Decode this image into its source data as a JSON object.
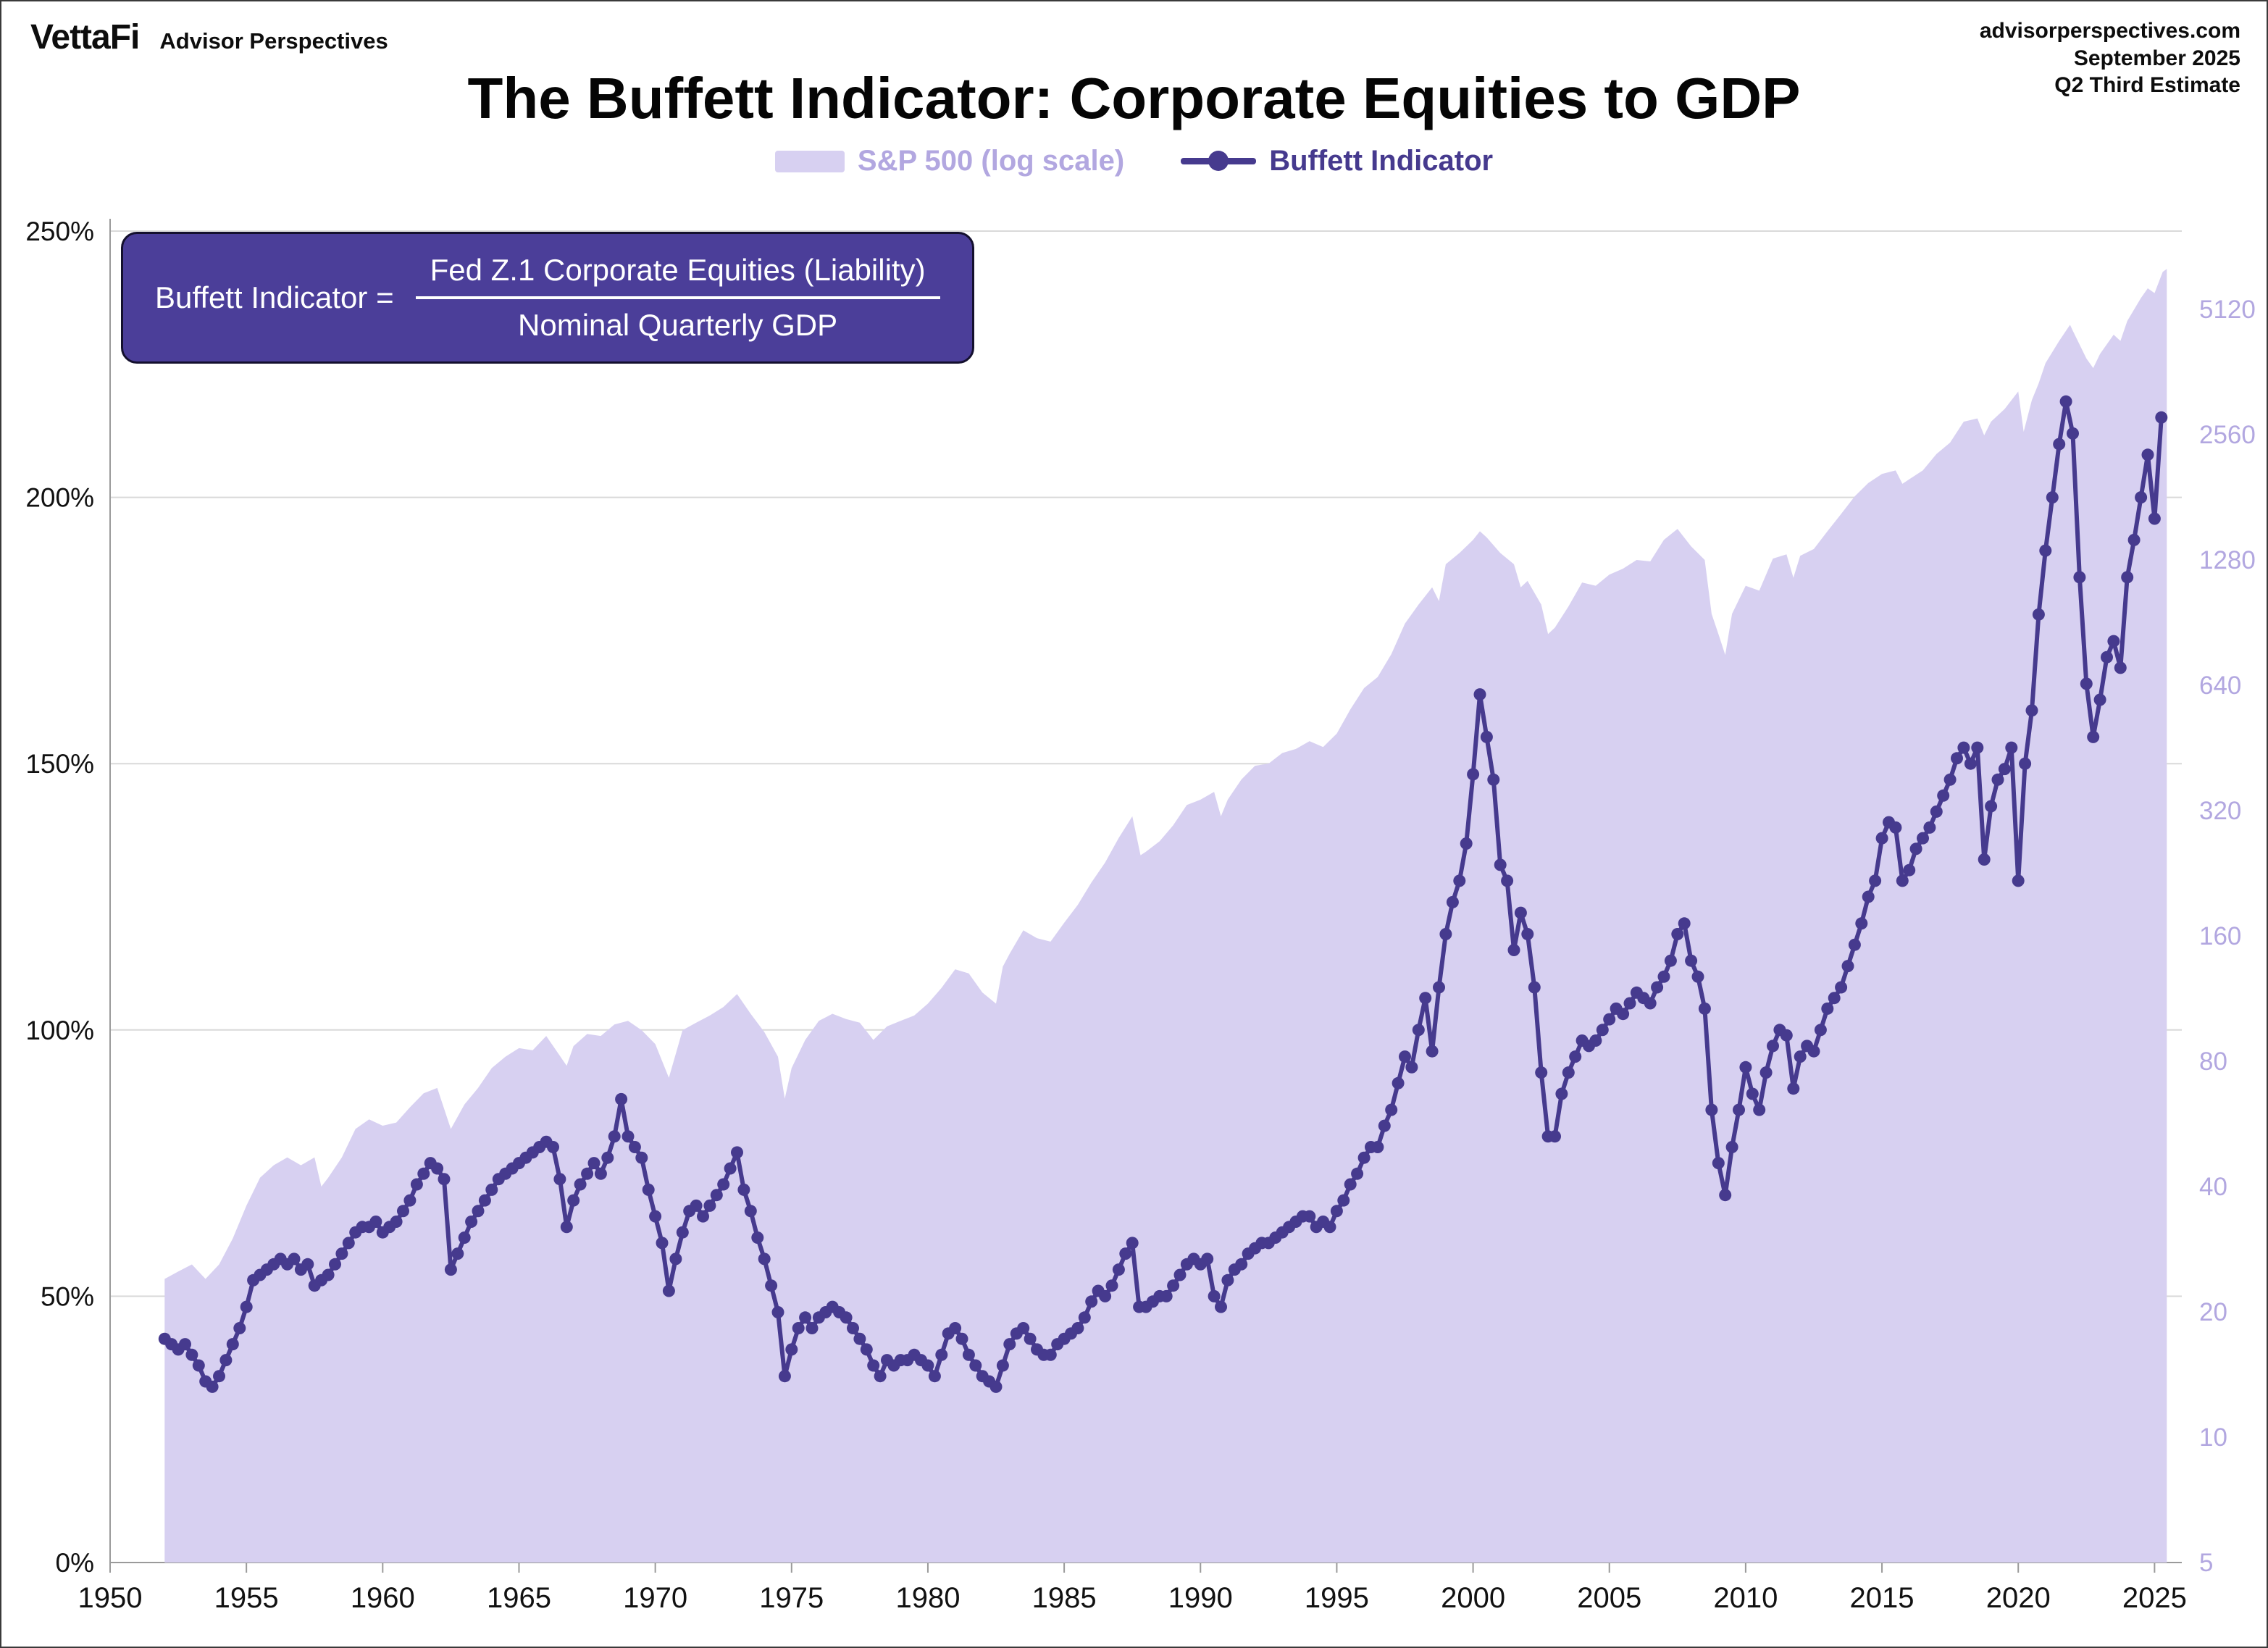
{
  "header": {
    "brand": "VettaFi",
    "brand_sub": "Advisor Perspectives",
    "site": "advisorperspectives.com",
    "date": "September 2025",
    "estimate": "Q2 Third Estimate"
  },
  "title": "The Buffett Indicator: Corporate Equities to GDP",
  "legend": {
    "sp500": "S&P 500 (log scale)",
    "buffett": "Buffett Indicator"
  },
  "formula": {
    "lhs": "Buffett Indicator =",
    "numerator": "Fed Z.1 Corporate Equities (Liability)",
    "denominator": "Nominal Quarterly GDP"
  },
  "chart_data": {
    "type": "line",
    "title": "The Buffett Indicator: Corporate Equities to GDP",
    "legend_entries": [
      "S&P 500 (log scale)",
      "Buffett Indicator"
    ],
    "x_axis": {
      "min": 1950,
      "max": 2026,
      "ticks": [
        1950,
        1955,
        1960,
        1965,
        1970,
        1975,
        1980,
        1985,
        1990,
        1995,
        2000,
        2005,
        2010,
        2015,
        2020,
        2025
      ]
    },
    "left_axis": {
      "max": 250,
      "unit": "%",
      "ticks": [
        {
          "value": 0,
          "label": "0%"
        },
        {
          "value": 50,
          "label": "50%"
        },
        {
          "value": 100,
          "label": "100%"
        },
        {
          "value": 150,
          "label": "150%"
        },
        {
          "value": 200,
          "label": "200%"
        },
        {
          "value": 250,
          "label": "250%"
        }
      ]
    },
    "right_axis": {
      "scale": "log2",
      "base": 5,
      "ticks": [
        5,
        10,
        20,
        40,
        80,
        160,
        320,
        640,
        1280,
        2560,
        5120
      ]
    },
    "colors": {
      "line": "#463a8e",
      "area": "#d7d0f1",
      "sp500_label": "#b2a7e0",
      "grid": "#d9d9d9",
      "axis": "#9a9a9a",
      "tick_text": "#111111",
      "formula_bg": "#4b3e99"
    },
    "series": {
      "sp500": {
        "name": "S&P 500 (log scale)",
        "render": "area",
        "points": [
          [
            1952.0,
            24
          ],
          [
            1952.5,
            25
          ],
          [
            1953.0,
            26
          ],
          [
            1953.5,
            24
          ],
          [
            1954.0,
            26
          ],
          [
            1954.5,
            30
          ],
          [
            1955.0,
            36
          ],
          [
            1955.5,
            42
          ],
          [
            1956.0,
            45
          ],
          [
            1956.5,
            47
          ],
          [
            1957.0,
            45
          ],
          [
            1957.5,
            47
          ],
          [
            1957.75,
            40
          ],
          [
            1958.0,
            42
          ],
          [
            1958.5,
            47
          ],
          [
            1959.0,
            55
          ],
          [
            1959.5,
            58
          ],
          [
            1960.0,
            56
          ],
          [
            1960.5,
            57
          ],
          [
            1961.0,
            62
          ],
          [
            1961.5,
            67
          ],
          [
            1962.0,
            69
          ],
          [
            1962.5,
            55
          ],
          [
            1963.0,
            63
          ],
          [
            1963.5,
            69
          ],
          [
            1964.0,
            77
          ],
          [
            1964.5,
            82
          ],
          [
            1965.0,
            86
          ],
          [
            1965.5,
            85
          ],
          [
            1966.0,
            92
          ],
          [
            1966.75,
            78
          ],
          [
            1967.0,
            87
          ],
          [
            1967.5,
            93
          ],
          [
            1968.0,
            92
          ],
          [
            1968.5,
            98
          ],
          [
            1969.0,
            100
          ],
          [
            1969.5,
            95
          ],
          [
            1970.0,
            88
          ],
          [
            1970.5,
            73
          ],
          [
            1971.0,
            95
          ],
          [
            1971.5,
            99
          ],
          [
            1972.0,
            103
          ],
          [
            1972.5,
            108
          ],
          [
            1973.0,
            116
          ],
          [
            1973.5,
            104
          ],
          [
            1974.0,
            94
          ],
          [
            1974.5,
            82
          ],
          [
            1974.75,
            65
          ],
          [
            1975.0,
            77
          ],
          [
            1975.5,
            90
          ],
          [
            1976.0,
            100
          ],
          [
            1976.5,
            104
          ],
          [
            1977.0,
            101
          ],
          [
            1977.5,
            99
          ],
          [
            1978.0,
            90
          ],
          [
            1978.5,
            97
          ],
          [
            1979.0,
            100
          ],
          [
            1979.5,
            103
          ],
          [
            1980.0,
            110
          ],
          [
            1980.5,
            120
          ],
          [
            1981.0,
            133
          ],
          [
            1981.5,
            130
          ],
          [
            1982.0,
            117
          ],
          [
            1982.5,
            110
          ],
          [
            1982.75,
            135
          ],
          [
            1983.0,
            145
          ],
          [
            1983.5,
            165
          ],
          [
            1984.0,
            158
          ],
          [
            1984.5,
            155
          ],
          [
            1985.0,
            172
          ],
          [
            1985.5,
            190
          ],
          [
            1986.0,
            215
          ],
          [
            1986.5,
            240
          ],
          [
            1987.0,
            275
          ],
          [
            1987.5,
            310
          ],
          [
            1987.8,
            250
          ],
          [
            1988.0,
            255
          ],
          [
            1988.5,
            270
          ],
          [
            1989.0,
            295
          ],
          [
            1989.5,
            330
          ],
          [
            1990.0,
            340
          ],
          [
            1990.5,
            355
          ],
          [
            1990.75,
            310
          ],
          [
            1991.0,
            340
          ],
          [
            1991.5,
            380
          ],
          [
            1992.0,
            410
          ],
          [
            1992.5,
            415
          ],
          [
            1993.0,
            440
          ],
          [
            1993.5,
            450
          ],
          [
            1994.0,
            470
          ],
          [
            1994.5,
            455
          ],
          [
            1995.0,
            490
          ],
          [
            1995.5,
            560
          ],
          [
            1996.0,
            630
          ],
          [
            1996.5,
            670
          ],
          [
            1997.0,
            760
          ],
          [
            1997.5,
            900
          ],
          [
            1998.0,
            1000
          ],
          [
            1998.5,
            1100
          ],
          [
            1998.75,
            1020
          ],
          [
            1999.0,
            1250
          ],
          [
            1999.5,
            1330
          ],
          [
            2000.0,
            1430
          ],
          [
            2000.25,
            1500
          ],
          [
            2000.5,
            1450
          ],
          [
            2001.0,
            1330
          ],
          [
            2001.5,
            1250
          ],
          [
            2001.75,
            1100
          ],
          [
            2002.0,
            1140
          ],
          [
            2002.5,
            1000
          ],
          [
            2002.75,
            850
          ],
          [
            2003.0,
            880
          ],
          [
            2003.5,
            990
          ],
          [
            2004.0,
            1130
          ],
          [
            2004.5,
            1110
          ],
          [
            2005.0,
            1180
          ],
          [
            2005.5,
            1220
          ],
          [
            2006.0,
            1280
          ],
          [
            2006.5,
            1270
          ],
          [
            2007.0,
            1430
          ],
          [
            2007.5,
            1520
          ],
          [
            2008.0,
            1380
          ],
          [
            2008.5,
            1280
          ],
          [
            2008.75,
            950
          ],
          [
            2009.0,
            850
          ],
          [
            2009.25,
            757
          ],
          [
            2009.5,
            950
          ],
          [
            2010.0,
            1110
          ],
          [
            2010.5,
            1080
          ],
          [
            2011.0,
            1290
          ],
          [
            2011.5,
            1320
          ],
          [
            2011.75,
            1160
          ],
          [
            2012.0,
            1310
          ],
          [
            2012.5,
            1360
          ],
          [
            2013.0,
            1500
          ],
          [
            2013.5,
            1650
          ],
          [
            2014.0,
            1820
          ],
          [
            2014.5,
            1960
          ],
          [
            2015.0,
            2060
          ],
          [
            2015.5,
            2100
          ],
          [
            2015.75,
            1950
          ],
          [
            2016.0,
            2000
          ],
          [
            2016.5,
            2100
          ],
          [
            2017.0,
            2300
          ],
          [
            2017.5,
            2450
          ],
          [
            2018.0,
            2750
          ],
          [
            2018.5,
            2800
          ],
          [
            2018.75,
            2550
          ],
          [
            2019.0,
            2750
          ],
          [
            2019.5,
            2950
          ],
          [
            2020.0,
            3250
          ],
          [
            2020.2,
            2600
          ],
          [
            2020.5,
            3100
          ],
          [
            2020.75,
            3400
          ],
          [
            2021.0,
            3800
          ],
          [
            2021.5,
            4300
          ],
          [
            2021.9,
            4700
          ],
          [
            2022.0,
            4550
          ],
          [
            2022.5,
            3900
          ],
          [
            2022.75,
            3700
          ],
          [
            2023.0,
            4000
          ],
          [
            2023.5,
            4450
          ],
          [
            2023.75,
            4300
          ],
          [
            2024.0,
            4800
          ],
          [
            2024.5,
            5450
          ],
          [
            2024.75,
            5750
          ],
          [
            2025.0,
            5600
          ],
          [
            2025.3,
            6300
          ],
          [
            2025.45,
            6400
          ]
        ]
      },
      "buffett": {
        "name": "Buffett Indicator",
        "render": "line+markers",
        "unit": "%",
        "x_start": 1952.0,
        "x_step": 0.25,
        "values": [
          42,
          41,
          40,
          41,
          39,
          37,
          34,
          33,
          35,
          38,
          41,
          44,
          48,
          53,
          54,
          55,
          56,
          57,
          56,
          57,
          55,
          56,
          52,
          53,
          54,
          56,
          58,
          60,
          62,
          63,
          63,
          64,
          62,
          63,
          64,
          66,
          68,
          71,
          73,
          75,
          74,
          72,
          55,
          58,
          61,
          64,
          66,
          68,
          70,
          72,
          73,
          74,
          75,
          76,
          77,
          78,
          79,
          78,
          72,
          63,
          68,
          71,
          73,
          75,
          73,
          76,
          80,
          87,
          80,
          78,
          76,
          70,
          65,
          60,
          51,
          57,
          62,
          66,
          67,
          65,
          67,
          69,
          71,
          74,
          77,
          70,
          66,
          61,
          57,
          52,
          47,
          35,
          40,
          44,
          46,
          44,
          46,
          47,
          48,
          47,
          46,
          44,
          42,
          40,
          37,
          35,
          38,
          37,
          38,
          38,
          39,
          38,
          37,
          35,
          39,
          43,
          44,
          42,
          39,
          37,
          35,
          34,
          33,
          37,
          41,
          43,
          44,
          42,
          40,
          39,
          39,
          41,
          42,
          43,
          44,
          46,
          49,
          51,
          50,
          52,
          55,
          58,
          60,
          48,
          48,
          49,
          50,
          50,
          52,
          54,
          56,
          57,
          56,
          57,
          50,
          48,
          53,
          55,
          56,
          58,
          59,
          60,
          60,
          61,
          62,
          63,
          64,
          65,
          65,
          63,
          64,
          63,
          66,
          68,
          71,
          73,
          76,
          78,
          78,
          82,
          85,
          90,
          95,
          93,
          100,
          106,
          96,
          108,
          118,
          124,
          128,
          135,
          148,
          163,
          155,
          147,
          131,
          128,
          115,
          122,
          118,
          108,
          92,
          80,
          80,
          88,
          92,
          95,
          98,
          97,
          98,
          100,
          102,
          104,
          103,
          105,
          107,
          106,
          105,
          108,
          110,
          113,
          118,
          120,
          113,
          110,
          104,
          85,
          75,
          69,
          78,
          85,
          93,
          88,
          85,
          92,
          97,
          100,
          99,
          89,
          95,
          97,
          96,
          100,
          104,
          106,
          108,
          112,
          116,
          120,
          125,
          128,
          136,
          139,
          138,
          128,
          130,
          134,
          136,
          138,
          141,
          144,
          147,
          151,
          153,
          150,
          153,
          132,
          142,
          147,
          149,
          153,
          128,
          150,
          160,
          178,
          190,
          200,
          210,
          218,
          212,
          185,
          165,
          155,
          162,
          170,
          173,
          168,
          185,
          192,
          200,
          208,
          196,
          215
        ]
      }
    }
  }
}
